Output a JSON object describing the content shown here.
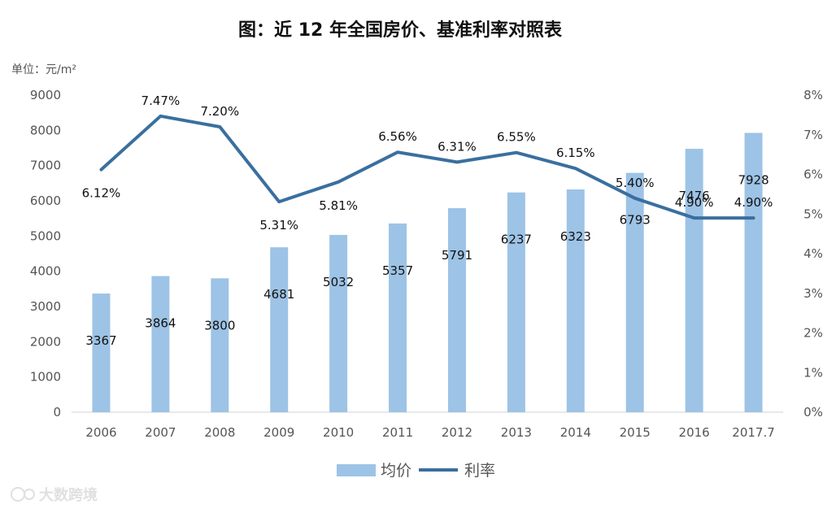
{
  "chart_data": {
    "type": "bar",
    "title": "图：近 12 年全国房价、基准利率对照表",
    "unit_label": "单位：元/m²",
    "categories": [
      "2006",
      "2007",
      "2008",
      "2009",
      "2010",
      "2011",
      "2012",
      "2013",
      "2014",
      "2015",
      "2016",
      "2017.7"
    ],
    "series": [
      {
        "name": "均价",
        "type": "bar",
        "axis": "left",
        "color": "#9dc3e6",
        "values": [
          3367,
          3864,
          3800,
          4681,
          5032,
          5357,
          5791,
          6237,
          6323,
          6793,
          7476,
          7928
        ],
        "labels": [
          "3367",
          "3864",
          "3800",
          "4681",
          "5032",
          "5357",
          "5791",
          "6237",
          "6323",
          "6793",
          "7476",
          "7928"
        ]
      },
      {
        "name": "利率",
        "type": "line",
        "axis": "right",
        "color": "#3a6f9f",
        "values": [
          6.12,
          7.47,
          7.2,
          5.31,
          5.81,
          6.56,
          6.31,
          6.55,
          6.15,
          5.4,
          4.9,
          4.9
        ],
        "labels": [
          "6.12%",
          "7.47%",
          "7.20%",
          "5.31%",
          "5.81%",
          "6.56%",
          "6.31%",
          "6.55%",
          "6.15%",
          "5.40%",
          "4.90%",
          "4.90%"
        ]
      }
    ],
    "ylim": [
      0,
      9000
    ],
    "y_ticks": [
      "0",
      "1000",
      "2000",
      "3000",
      "4000",
      "5000",
      "6000",
      "7000",
      "8000",
      "9000"
    ],
    "y2lim": [
      0,
      8
    ],
    "y2_ticks": [
      "0%",
      "1%",
      "2%",
      "3%",
      "4%",
      "5%",
      "6%",
      "7%",
      "8%"
    ],
    "grid": false,
    "legend_position": "bottom"
  },
  "watermark": "大数跨境"
}
